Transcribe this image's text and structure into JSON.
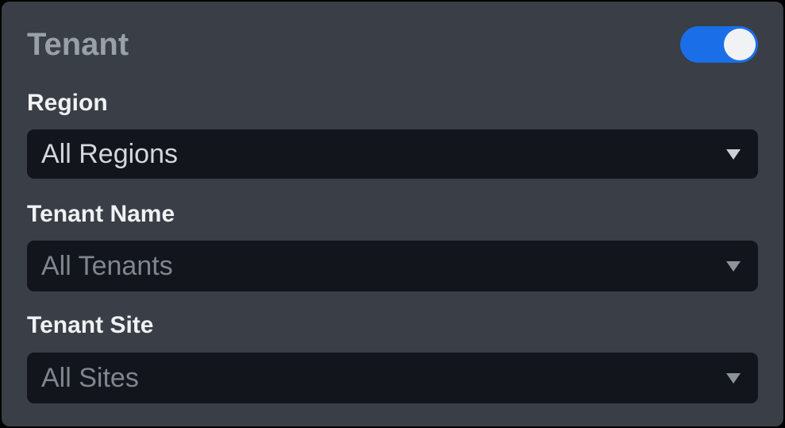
{
  "header": {
    "title": "Tenant",
    "toggle": {
      "name": "tenant-toggle",
      "state": "on"
    }
  },
  "fields": [
    {
      "label": "Region",
      "value": "All Regions",
      "state": "selected"
    },
    {
      "label": "Tenant Name",
      "value": "All Tenants",
      "state": "muted"
    },
    {
      "label": "Tenant Site",
      "value": "All Sites",
      "state": "muted"
    }
  ],
  "colors": {
    "accent": "#1a6fe8",
    "panel_bg": "#3a3e46",
    "control_bg": "#12151c",
    "title_text": "#99a0a8",
    "label_text": "#f0f2f4",
    "value_text": "#d4d7db",
    "muted_value_text": "#80868f",
    "toggle_knob": "#f1f2f3"
  }
}
